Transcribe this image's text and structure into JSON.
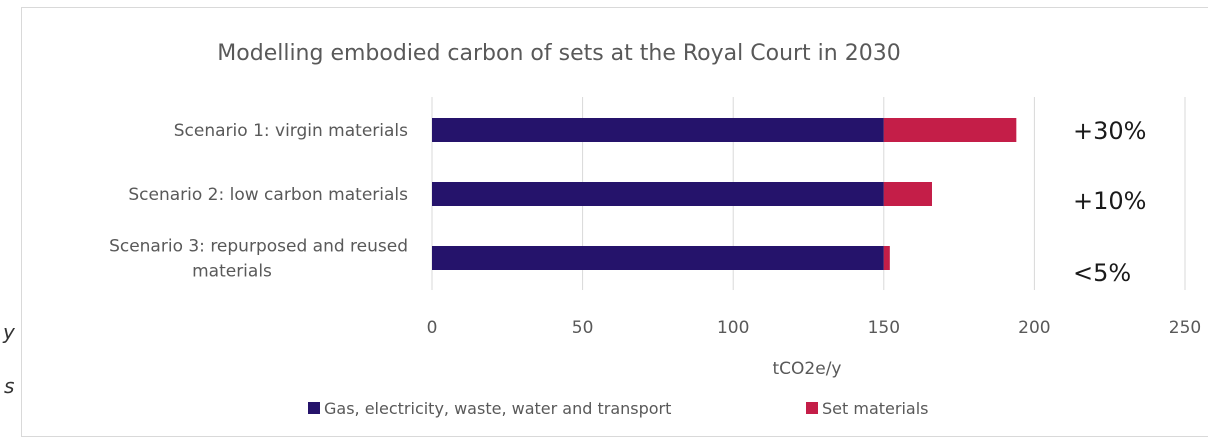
{
  "chart_data": {
    "type": "bar",
    "orientation": "horizontal",
    "stacked": true,
    "title": "Modelling embodied carbon of sets at the Royal Court in 2030",
    "categories": [
      [
        "Scenario 1: virgin materials"
      ],
      [
        "Scenario 2: low carbon materials"
      ],
      [
        "Scenario 3: repurposed and reused",
        "materials"
      ]
    ],
    "series": [
      {
        "name": "Gas, electricity, waste, water and transport",
        "color": "#25136b",
        "values": [
          150,
          150,
          150
        ]
      },
      {
        "name": "Set materials",
        "color": "#c41e48",
        "values": [
          44,
          16,
          2
        ]
      }
    ],
    "annotations": [
      "+30%",
      "+10%",
      "<5%"
    ],
    "xlabel": "tCO2e/y",
    "xlim": [
      0,
      250
    ],
    "xticks": [
      0,
      50,
      100,
      150,
      200,
      250
    ],
    "grid": "vertical",
    "legend_position": "bottom"
  },
  "page_fragments": [
    "y",
    "s"
  ]
}
